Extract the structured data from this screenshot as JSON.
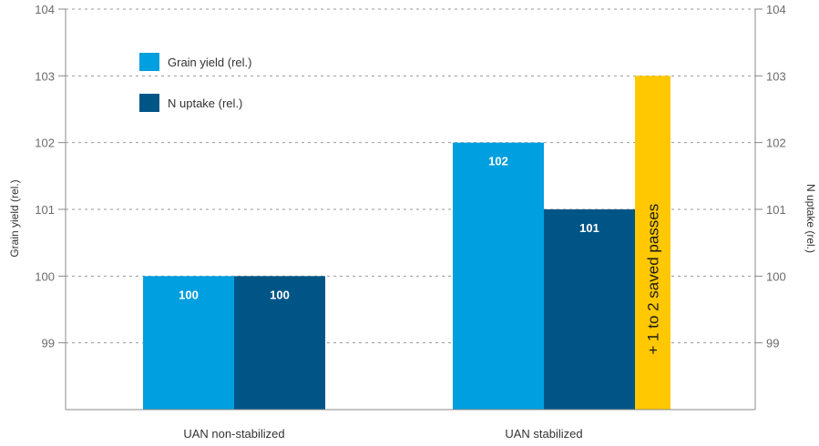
{
  "chart_data": {
    "type": "bar",
    "categories": [
      "UAN non-stabilized",
      "UAN stabilized"
    ],
    "series": [
      {
        "name": "Grain yield (rel.)",
        "color": "#009fdf",
        "values": [
          100,
          102
        ],
        "labels": [
          "100",
          "102"
        ]
      },
      {
        "name": "N uptake (rel.)",
        "color": "#005587",
        "values": [
          100,
          101
        ],
        "labels": [
          "100",
          "101"
        ]
      }
    ],
    "extra_bar": {
      "category": "UAN stabilized",
      "value": 103,
      "color": "#ffc800",
      "label": "+ 1 to 2 saved passes"
    },
    "ylabel_left": "Grain yield (rel.)",
    "ylabel_right": "N uptake (rel.)",
    "ylim": [
      98,
      104
    ],
    "yticks": [
      99,
      100,
      101,
      102,
      103,
      104
    ],
    "grid": "dashed-horizontal",
    "legend_position": "top-left"
  }
}
